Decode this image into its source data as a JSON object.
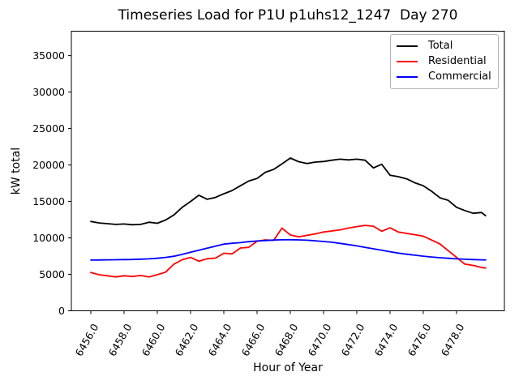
{
  "chart_data": {
    "type": "line",
    "title": "Timeseries Load for P1U p1uhs12_1247  Day 270",
    "xlabel": "Hour of Year",
    "ylabel": "kW total",
    "grid": false,
    "legend_position": "upper right",
    "xlim": [
      6454.83,
      6480.88
    ],
    "ylim": [
      0,
      38350
    ],
    "xtick_rotation": 60,
    "xticks": {
      "values": [
        6456,
        6458,
        6460,
        6462,
        6464,
        6466,
        6468,
        6470,
        6472,
        6474,
        6476,
        6478
      ],
      "labels": [
        "6456.0",
        "6458.0",
        "6460.0",
        "6462.0",
        "6464.0",
        "6466.0",
        "6468.0",
        "6470.0",
        "6472.0",
        "6474.0",
        "6476.0",
        "6478.0"
      ]
    },
    "yticks": {
      "values": [
        0,
        5000,
        10000,
        15000,
        20000,
        25000,
        30000,
        35000
      ],
      "labels": [
        "0",
        "5000",
        "10000",
        "15000",
        "20000",
        "25000",
        "30000",
        "35000"
      ]
    },
    "x": [
      6456.0,
      6456.5,
      6457.0,
      6457.5,
      6458.0,
      6458.5,
      6459.0,
      6459.5,
      6460.0,
      6460.5,
      6461.0,
      6461.5,
      6462.0,
      6462.5,
      6463.0,
      6463.5,
      6464.0,
      6464.5,
      6465.0,
      6465.5,
      6466.0,
      6466.5,
      6467.0,
      6467.5,
      6468.0,
      6468.5,
      6469.0,
      6469.5,
      6470.0,
      6470.5,
      6471.0,
      6471.5,
      6472.0,
      6472.5,
      6473.0,
      6473.5,
      6474.0,
      6474.5,
      6475.0,
      6475.5,
      6476.0,
      6476.5,
      6477.0,
      6477.5,
      6478.0,
      6478.5,
      6479.0,
      6479.5,
      6479.75
    ],
    "series": [
      {
        "name": "Total",
        "color": "#000000",
        "values": [
          12250,
          12050,
          11950,
          11850,
          11900,
          11800,
          11850,
          12150,
          12000,
          12450,
          13150,
          14200,
          15000,
          15850,
          15300,
          15550,
          16050,
          16500,
          17150,
          17800,
          18150,
          19000,
          19400,
          20150,
          20950,
          20450,
          20200,
          20400,
          20480,
          20650,
          20800,
          20700,
          20800,
          20650,
          19600,
          20100,
          18600,
          18400,
          18100,
          17550,
          17150,
          16400,
          15500,
          15150,
          14200,
          13750,
          13370,
          13480,
          13050
        ]
      },
      {
        "name": "Residential",
        "color": "#ff0000",
        "values": [
          5250,
          4950,
          4800,
          4650,
          4800,
          4700,
          4850,
          4650,
          4950,
          5300,
          6400,
          7000,
          7330,
          6800,
          7140,
          7230,
          7890,
          7810,
          8620,
          8700,
          9550,
          9730,
          9660,
          11350,
          10400,
          10150,
          10350,
          10550,
          10800,
          10950,
          11100,
          11350,
          11550,
          11720,
          11600,
          10900,
          11380,
          10800,
          10620,
          10440,
          10240,
          9700,
          9170,
          8250,
          7330,
          6400,
          6220,
          5950,
          5870
        ]
      },
      {
        "name": "Commercial",
        "color": "#0000ff",
        "values": [
          6960,
          6970,
          6990,
          7000,
          7020,
          7040,
          7080,
          7130,
          7200,
          7320,
          7480,
          7740,
          8030,
          8320,
          8590,
          8870,
          9150,
          9260,
          9350,
          9480,
          9570,
          9640,
          9700,
          9740,
          9750,
          9730,
          9680,
          9600,
          9500,
          9400,
          9250,
          9080,
          8900,
          8700,
          8500,
          8300,
          8100,
          7920,
          7760,
          7620,
          7490,
          7380,
          7280,
          7200,
          7130,
          7070,
          7020,
          6990,
          6980
        ]
      }
    ]
  }
}
